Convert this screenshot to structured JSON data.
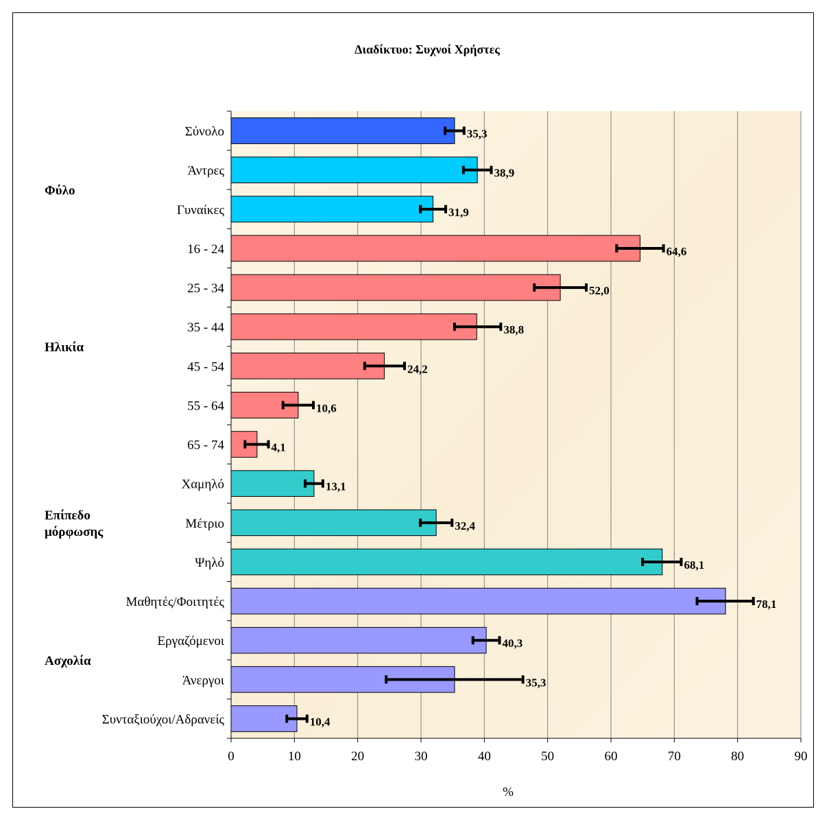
{
  "chart_data": {
    "type": "bar",
    "orientation": "horizontal",
    "title": "Διαδίκτυο: Συχνοί Χρήστες",
    "xlabel": "%",
    "ylabel": "",
    "xlim": [
      0,
      90
    ],
    "x_ticks": [
      "0",
      "10",
      "20",
      "30",
      "40",
      "50",
      "60",
      "70",
      "80",
      "90"
    ],
    "grid": "vertical",
    "error_bars": true,
    "categories": [
      "Σύνολο",
      "Άντρες",
      "Γυναίκες",
      "16 - 24",
      "25 - 34",
      "35 - 44",
      "45 - 54",
      "55 - 64",
      "65 - 74",
      "Χαμηλό",
      "Μέτριο",
      "Ψηλό",
      "Μαθητές/Φοιτητές",
      "Εργαζόμενοι",
      "Άνεργοι",
      "Συνταξιούχοι/Αδρανείς"
    ],
    "values": [
      35.3,
      38.9,
      31.9,
      64.6,
      52.0,
      38.8,
      24.2,
      10.6,
      4.1,
      13.1,
      32.4,
      68.1,
      78.1,
      40.3,
      35.3,
      10.4
    ],
    "value_labels": [
      "35,3",
      "38,9",
      "31,9",
      "64,6",
      "52,0",
      "38,8",
      "24,2",
      "10,6",
      "4,1",
      "13,1",
      "32,4",
      "68,1",
      "78,1",
      "40,3",
      "35,3",
      "10,4"
    ],
    "error_low": [
      33.8,
      36.7,
      29.9,
      60.9,
      47.9,
      35.3,
      21.1,
      8.2,
      2.2,
      11.7,
      29.9,
      65.0,
      73.6,
      38.2,
      24.5,
      8.8
    ],
    "error_high": [
      36.8,
      41.1,
      33.9,
      68.3,
      56.1,
      42.6,
      27.4,
      13.0,
      5.9,
      14.5,
      34.9,
      71.1,
      82.5,
      42.4,
      46.1,
      12.0
    ],
    "bar_colors": [
      "#3366ff",
      "#00ccff",
      "#00ccff",
      "#ff8080",
      "#ff8080",
      "#ff8080",
      "#ff8080",
      "#ff8080",
      "#ff8080",
      "#33cccc",
      "#33cccc",
      "#33cccc",
      "#9999ff",
      "#9999ff",
      "#9999ff",
      "#9999ff"
    ],
    "groups": [
      {
        "label": "Φύλο",
        "first": 1,
        "last": 2
      },
      {
        "label": "Ηλικία",
        "first": 3,
        "last": 8
      },
      {
        "label": "Επίπεδο μόρφωσης",
        "lines": [
          "Επίπεδο",
          "μόρφωσης"
        ],
        "first": 9,
        "last": 11
      },
      {
        "label": "Ασχολία",
        "first": 12,
        "last": 15
      }
    ],
    "plot_background": "#fbf1dc",
    "grid_color": "#808080"
  }
}
